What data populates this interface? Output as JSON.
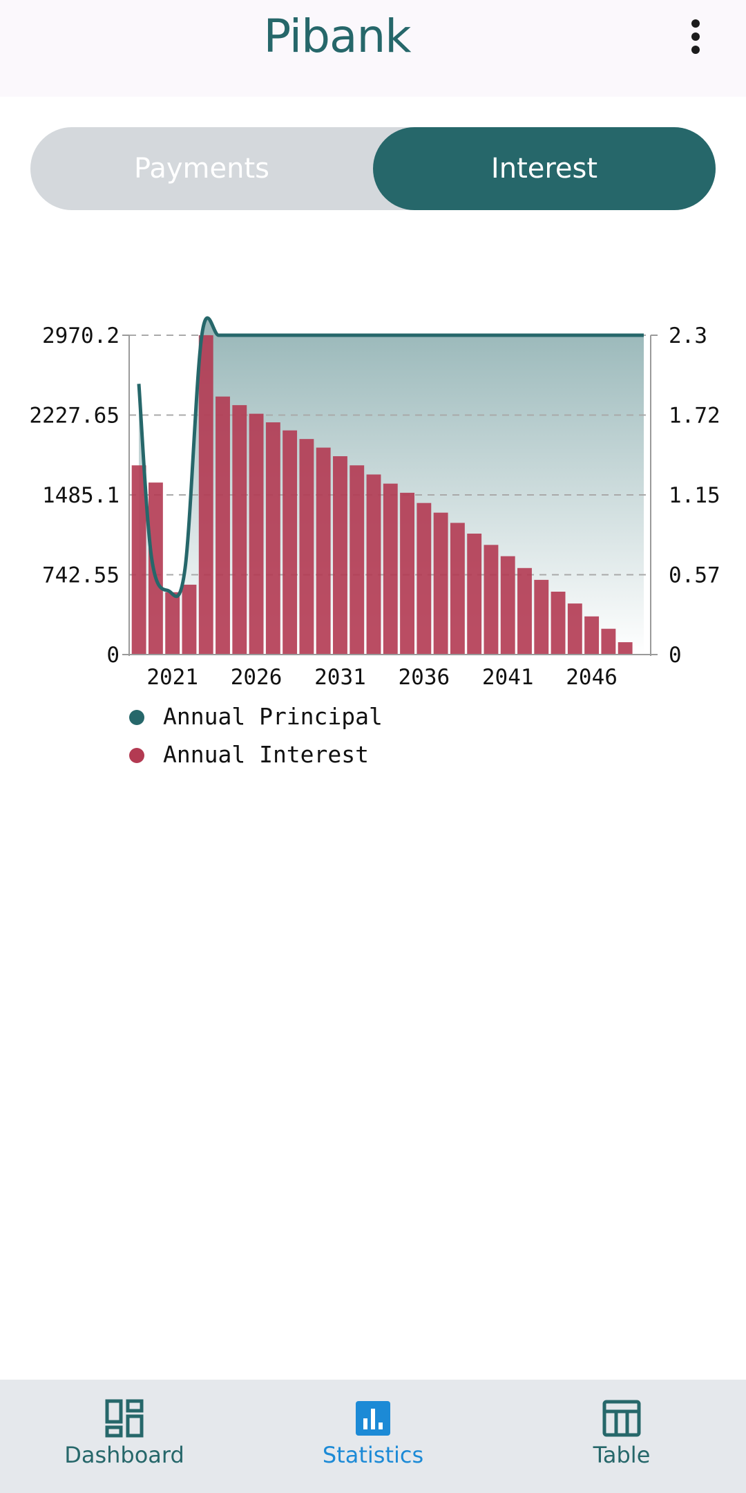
{
  "header": {
    "title": "Pibank",
    "menu_icon": "more-vert-icon"
  },
  "tabs": [
    {
      "label": "Payments",
      "selected": false
    },
    {
      "label": "Interest",
      "selected": true
    }
  ],
  "colors": {
    "brand": "#26676a",
    "interest": "#b33a52",
    "active_nav": "#1c8ad6",
    "toggle_bg": "#d4d8dc"
  },
  "chart_data": {
    "type": "bar",
    "title": "",
    "x": [
      2019,
      2020,
      2021,
      2022,
      2023,
      2024,
      2025,
      2026,
      2027,
      2028,
      2029,
      2030,
      2031,
      2032,
      2033,
      2034,
      2035,
      2036,
      2037,
      2038,
      2039,
      2040,
      2041,
      2042,
      2043,
      2044,
      2045,
      2046,
      2047,
      2048,
      2049
    ],
    "x_tick_labels": [
      "2021",
      "2026",
      "2031",
      "2036",
      "2041",
      "2046"
    ],
    "x_tick_values": [
      2021,
      2026,
      2031,
      2036,
      2041,
      2046
    ],
    "y_left_ticks": [
      "0",
      "742.55",
      "1485.1",
      "2227.65",
      "2970.2"
    ],
    "y_left_range": [
      0,
      2970.2
    ],
    "y_right_ticks": [
      "0",
      "0.57",
      "1.15",
      "1.72",
      "2.3"
    ],
    "y_right_range": [
      0,
      2.3
    ],
    "grid": "horizontal-dashed",
    "legend_position": "bottom-left",
    "series": [
      {
        "name": "Annual Principal",
        "type": "area-line",
        "axis": "right",
        "color": "#26676a",
        "values": [
          1.95,
          0.7,
          0.46,
          0.62,
          2.3,
          2.3,
          2.3,
          2.3,
          2.3,
          2.3,
          2.3,
          2.3,
          2.3,
          2.3,
          2.3,
          2.3,
          2.3,
          2.3,
          2.3,
          2.3,
          2.3,
          2.3,
          2.3,
          2.3,
          2.3,
          2.3,
          2.3,
          2.3,
          2.3,
          2.3,
          2.3
        ]
      },
      {
        "name": "Annual Interest",
        "type": "bar",
        "axis": "left",
        "color": "#b33a52",
        "values": [
          1760,
          1600,
          580,
          650,
          2970,
          2400,
          2320,
          2240,
          2160,
          2085,
          2005,
          1925,
          1845,
          1760,
          1675,
          1590,
          1505,
          1410,
          1320,
          1225,
          1125,
          1020,
          915,
          805,
          695,
          585,
          475,
          355,
          240,
          115,
          0
        ]
      }
    ]
  },
  "bottom_nav": [
    {
      "label": "Dashboard",
      "icon": "dashboard-icon",
      "active": false
    },
    {
      "label": "Statistics",
      "icon": "statistics-icon",
      "active": true
    },
    {
      "label": "Table",
      "icon": "table-icon",
      "active": false
    }
  ]
}
